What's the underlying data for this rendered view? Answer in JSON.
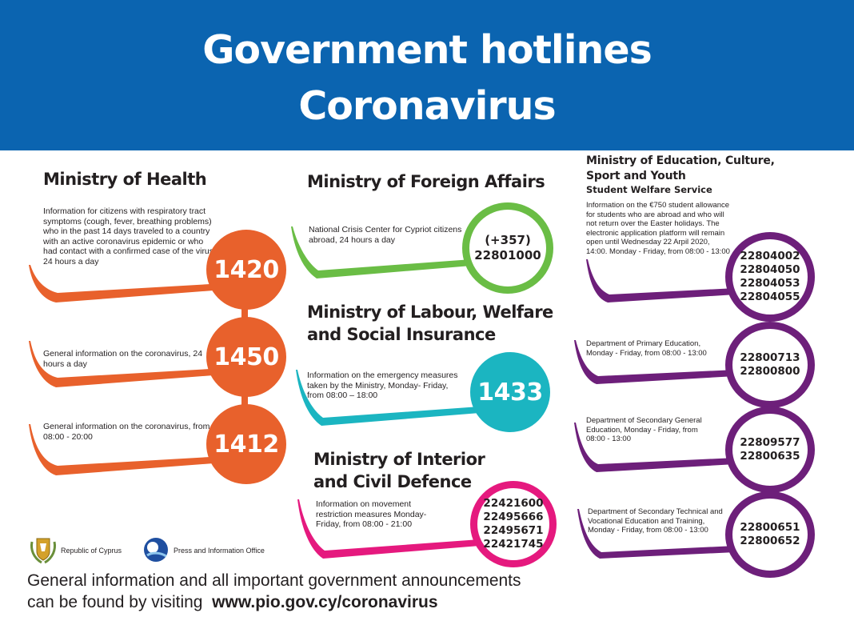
{
  "header": {
    "title_line1": "Government hotlines",
    "title_line2": "Coronavirus",
    "background": "#0b64b0"
  },
  "health": {
    "name": "Ministry of Health",
    "color": "#e8612c",
    "items": [
      {
        "text": "Information for citizens with respiratory tract symptoms (cough, fever, breathing problems) who in the past 14 days traveled to a country with an active coronavirus epidemic or who had contact with a confirmed case of the virus, 24 hours a day",
        "number": "1420"
      },
      {
        "text": "General information on the coronavirus, 24 hours a day",
        "number": "1450"
      },
      {
        "text": "General information on the coronavirus, from 08:00 - 20:00",
        "number": "1412"
      }
    ]
  },
  "foreign": {
    "name": "Ministry of Foreign Affairs",
    "color": "#6abd45",
    "text": "National Crisis Center for Cypriot citizens abroad, 24 hours a day",
    "number_line1": "(+357)",
    "number_line2": "22801000"
  },
  "labour": {
    "name_line1": "Ministry of Labour, Welfare",
    "name_line2": "and Social Insurance",
    "color": "#1bb5c1",
    "text": "Information on the emergency measures taken by the Ministry, Monday- Friday, from 08:00 – 18:00",
    "number": "1433"
  },
  "interior": {
    "name_line1": "Ministry of Interior",
    "name_line2": "and Civil Defence",
    "color": "#e5197e",
    "text": "Information on movement restriction measures Monday-Friday, from 08:00 - 21:00",
    "numbers": [
      "22421600",
      "22495666",
      "22495671",
      "22421745"
    ]
  },
  "education": {
    "name_line1": "Ministry of Education, Culture,",
    "name_line2": "Sport and Youth",
    "subtitle": "Student Welfare Service",
    "color": "#6d1f7a",
    "items": [
      {
        "text": "Information on the €750 student allowance for students who are abroad and who will not return over the Easter holidays. The electronic application platform will remain open until Wednesday 22 Arpil 2020, 14:00. Monday - Friday, from 08:00 - 13:00",
        "numbers": [
          "22804002",
          "22804050",
          "22804053",
          "22804055"
        ]
      },
      {
        "text": "Department of Primary Education, Monday - Friday, from 08:00 - 13:00",
        "numbers": [
          "22800713",
          "22800800"
        ]
      },
      {
        "text": "Department of Secondary General Education, Monday - Friday, from 08:00 - 13:00",
        "numbers": [
          "22809577",
          "22800635"
        ]
      },
      {
        "text": "Department of Secondary Technical and Vocational Education and Training, Monday - Friday, from 08:00 - 13:00",
        "numbers": [
          "22800651",
          "22800652"
        ]
      }
    ]
  },
  "logos": {
    "republic_label": "Republic of Cyprus",
    "pio_label": "Press and Information Office",
    "republic_icon": "cyprus-emblem-icon",
    "pio_icon": "pio-logo-icon"
  },
  "footer": {
    "line1": "General information and all important government announcements",
    "line2_prefix": "can be found by visiting",
    "url": "www.pio.gov.cy/coronavirus"
  }
}
